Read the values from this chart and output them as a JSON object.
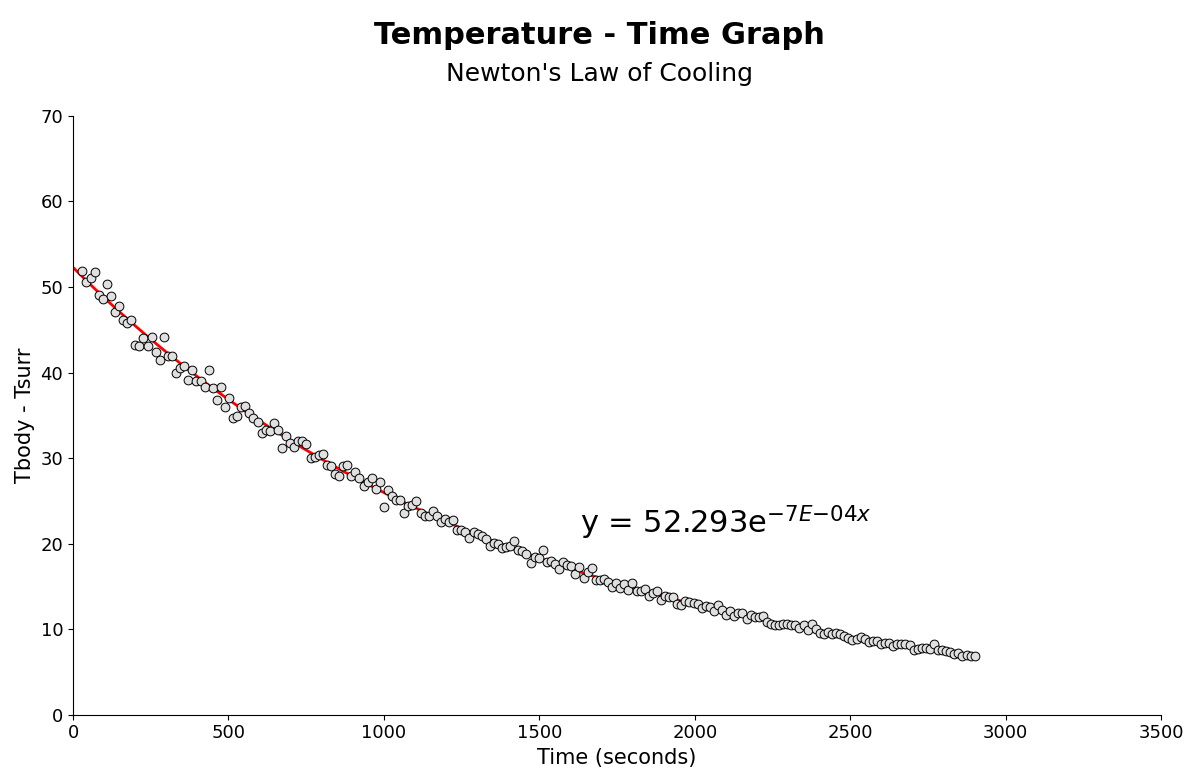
{
  "title_line1": "Temperature - Time Graph",
  "title_line2": "Newton's Law of Cooling",
  "xlabel": "Time (seconds)",
  "ylabel": "Tbody - Tsurr",
  "xlim": [
    0,
    3500
  ],
  "ylim": [
    0,
    70
  ],
  "xticks": [
    0,
    500,
    1000,
    1500,
    2000,
    2500,
    3000,
    3500
  ],
  "yticks": [
    0,
    10,
    20,
    30,
    40,
    50,
    60,
    70
  ],
  "fit_A": 52.293,
  "fit_k": 0.0007,
  "data_noise_seed": 42,
  "data_x_end": 2900,
  "data_n_points": 220,
  "marker_facecolor": "#e0e0e0",
  "marker_edge_color": "#000000",
  "line_color": "#ff0000",
  "background_color": "#ffffff",
  "title_fontsize": 22,
  "subtitle_fontsize": 18,
  "axis_label_fontsize": 15,
  "tick_fontsize": 13,
  "equation_fontsize": 22
}
